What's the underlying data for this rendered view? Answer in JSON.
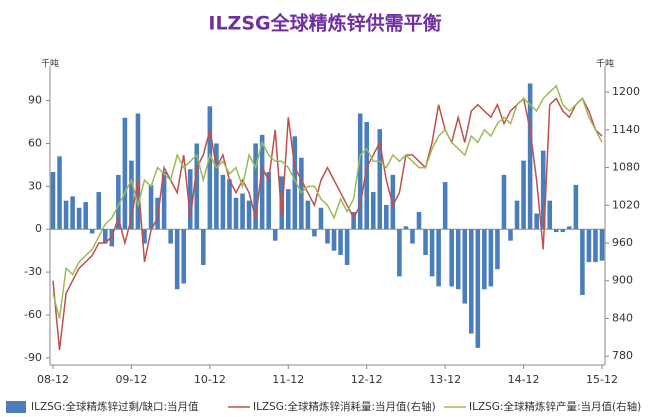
{
  "chart_data": {
    "type": "combo",
    "title": "ILZSG全球精炼锌供需平衡",
    "y_label": "千吨",
    "y2_label": "千吨",
    "categories": [
      "08-12",
      null,
      null,
      null,
      null,
      null,
      null,
      null,
      null,
      null,
      null,
      null,
      "09-12",
      null,
      null,
      null,
      null,
      null,
      null,
      null,
      null,
      null,
      null,
      null,
      "10-12",
      null,
      null,
      null,
      null,
      null,
      null,
      null,
      null,
      null,
      null,
      null,
      "11-12",
      null,
      null,
      null,
      null,
      null,
      null,
      null,
      null,
      null,
      null,
      null,
      "12-12",
      null,
      null,
      null,
      null,
      null,
      null,
      null,
      null,
      null,
      null,
      null,
      "13-12",
      null,
      null,
      null,
      null,
      null,
      null,
      null,
      null,
      null,
      null,
      null,
      "14-12",
      null,
      null,
      null,
      null,
      null,
      null,
      null,
      null,
      null,
      null,
      null,
      "15-12"
    ],
    "ylim": [
      -95,
      110
    ],
    "yticks": [
      -90,
      -60,
      -30,
      0,
      30,
      60,
      90
    ],
    "y2lim": [
      766,
      1232
    ],
    "y2ticks": [
      780,
      840,
      900,
      960,
      1020,
      1080,
      1140,
      1200
    ],
    "legend": "bottom",
    "series": [
      {
        "name": "ILZSG:全球精炼锌过剩/缺口:当月值",
        "type": "bar",
        "color": "#4a7ebb",
        "values": [
          40,
          51,
          20,
          23,
          15,
          19,
          -3,
          26,
          -10,
          -12,
          38,
          78,
          48,
          81,
          -10,
          31,
          22,
          40,
          -10,
          -42,
          -38,
          42,
          60,
          -25,
          86,
          60,
          38,
          35,
          22,
          25,
          20,
          60,
          66,
          40,
          -8,
          37,
          28,
          65,
          50,
          20,
          -5,
          15,
          -10,
          -15,
          -18,
          -25,
          12,
          81,
          75,
          26,
          70,
          17,
          38,
          -33,
          2,
          -10,
          12,
          -18,
          -33,
          -40,
          33,
          -40,
          -42,
          -52,
          -73,
          -83,
          -42,
          -40,
          -28,
          38,
          -8,
          20,
          48,
          102,
          11,
          55,
          20,
          -2,
          -2,
          2,
          31,
          -46,
          -23,
          -23,
          -22
        ]
      },
      {
        "name": "ILZSG:全球精炼锌消耗量:当月值(右轴)",
        "type": "line",
        "axis": "y2",
        "color": "#c0504d",
        "values": [
          900,
          790,
          880,
          900,
          920,
          930,
          940,
          960,
          960,
          970,
          1000,
          960,
          1000,
          1060,
          930,
          980,
          1000,
          1080,
          1060,
          1040,
          1100,
          1000,
          1080,
          1100,
          1140,
          1080,
          1100,
          1060,
          1040,
          1060,
          1040,
          1000,
          1080,
          1060,
          1140,
          1000,
          1160,
          1080,
          1060,
          1040,
          1020,
          1060,
          1080,
          1060,
          1040,
          1020,
          1000,
          1020,
          1080,
          1100,
          1120,
          1060,
          1020,
          1040,
          1100,
          1100,
          1090,
          1080,
          1120,
          1180,
          1140,
          1120,
          1160,
          1120,
          1170,
          1180,
          1170,
          1160,
          1180,
          1150,
          1170,
          1180,
          1190,
          1140,
          1060,
          950,
          1180,
          1190,
          1170,
          1160,
          1180,
          1190,
          1170,
          1140,
          1130
        ]
      },
      {
        "name": "ILZSG:全球精炼锌产量:当月值(右轴)",
        "type": "line",
        "axis": "y2",
        "color": "#9bbb59",
        "values": [
          880,
          840,
          920,
          910,
          930,
          940,
          950,
          970,
          990,
          1000,
          1020,
          1040,
          1060,
          1020,
          1060,
          1050,
          1080,
          1070,
          1060,
          1100,
          1080,
          1090,
          1100,
          1060,
          1100,
          1080,
          1090,
          1070,
          1080,
          1050,
          1100,
          1080,
          1120,
          1100,
          1090,
          1090,
          1080,
          1060,
          1040,
          1050,
          1050,
          1030,
          1020,
          1000,
          1030,
          1010,
          1030,
          1100,
          1110,
          1090,
          1090,
          1080,
          1100,
          1090,
          1100,
          1090,
          1080,
          1080,
          1110,
          1130,
          1140,
          1120,
          1110,
          1100,
          1130,
          1120,
          1140,
          1130,
          1150,
          1160,
          1150,
          1180,
          1190,
          1180,
          1170,
          1190,
          1200,
          1210,
          1180,
          1170,
          1180,
          1190,
          1160,
          1140,
          1120
        ]
      }
    ]
  }
}
